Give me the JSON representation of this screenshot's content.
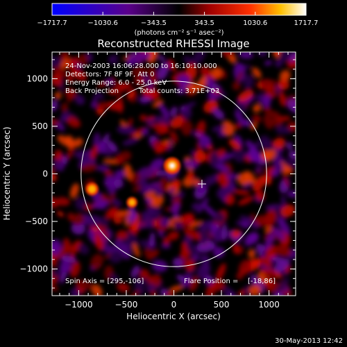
{
  "colorbar": {
    "tick_labels": [
      "−1717.7",
      "−1030.6",
      "−343.5",
      "343.5",
      "1030.6",
      "1717.7"
    ],
    "units": "(photons cm⁻² s⁻¹ asec⁻²)"
  },
  "chart_data": {
    "type": "heatmap",
    "title": "Reconstructed RHESSI Image",
    "xlabel": "Heliocentric X (arcsec)",
    "ylabel": "Heliocentric Y (arcsec)",
    "xlim": [
      -1280,
      1280
    ],
    "ylim": [
      -1280,
      1280
    ],
    "x_ticks": [
      "−1000",
      "−500",
      "0",
      "500",
      "1000"
    ],
    "y_ticks": [
      "1000",
      "500",
      "0",
      "−500",
      "−1000"
    ],
    "color_range": [
      -1717.7,
      1717.7
    ],
    "solar_disk_radius_arcsec": 975,
    "flare_position_xy": [
      -18,
      86
    ],
    "spin_axis_marker_xy": [
      295,
      -106
    ],
    "bright_sources": [
      {
        "x": -18,
        "y": 86,
        "value": 1717.7
      },
      {
        "x": -860,
        "y": -160,
        "value": 1200
      },
      {
        "x": -440,
        "y": -300,
        "value": 900
      }
    ]
  },
  "annotations": {
    "time_range": "24-Nov-2003 16:06:28.000 to 16:10:10.000",
    "detectors": "Detectors: 7F 8F 9F, Att 0",
    "energy_range": "Energy Range: 6.0 - 25.0 keV",
    "method": "Back Projection",
    "total_counts": "Total counts: 3.71E+03",
    "spin_axis": "Spin Axis = [295,-106]",
    "flare_position_label": "Flare Position = ",
    "flare_position_value": "[-18,86]"
  },
  "footer": {
    "timestamp": "30-May-2013 12:42"
  },
  "colors": {
    "background": "#000000",
    "foreground": "#ffffff",
    "negative_low": "#0000ff",
    "positive_high": "#ffffff"
  }
}
